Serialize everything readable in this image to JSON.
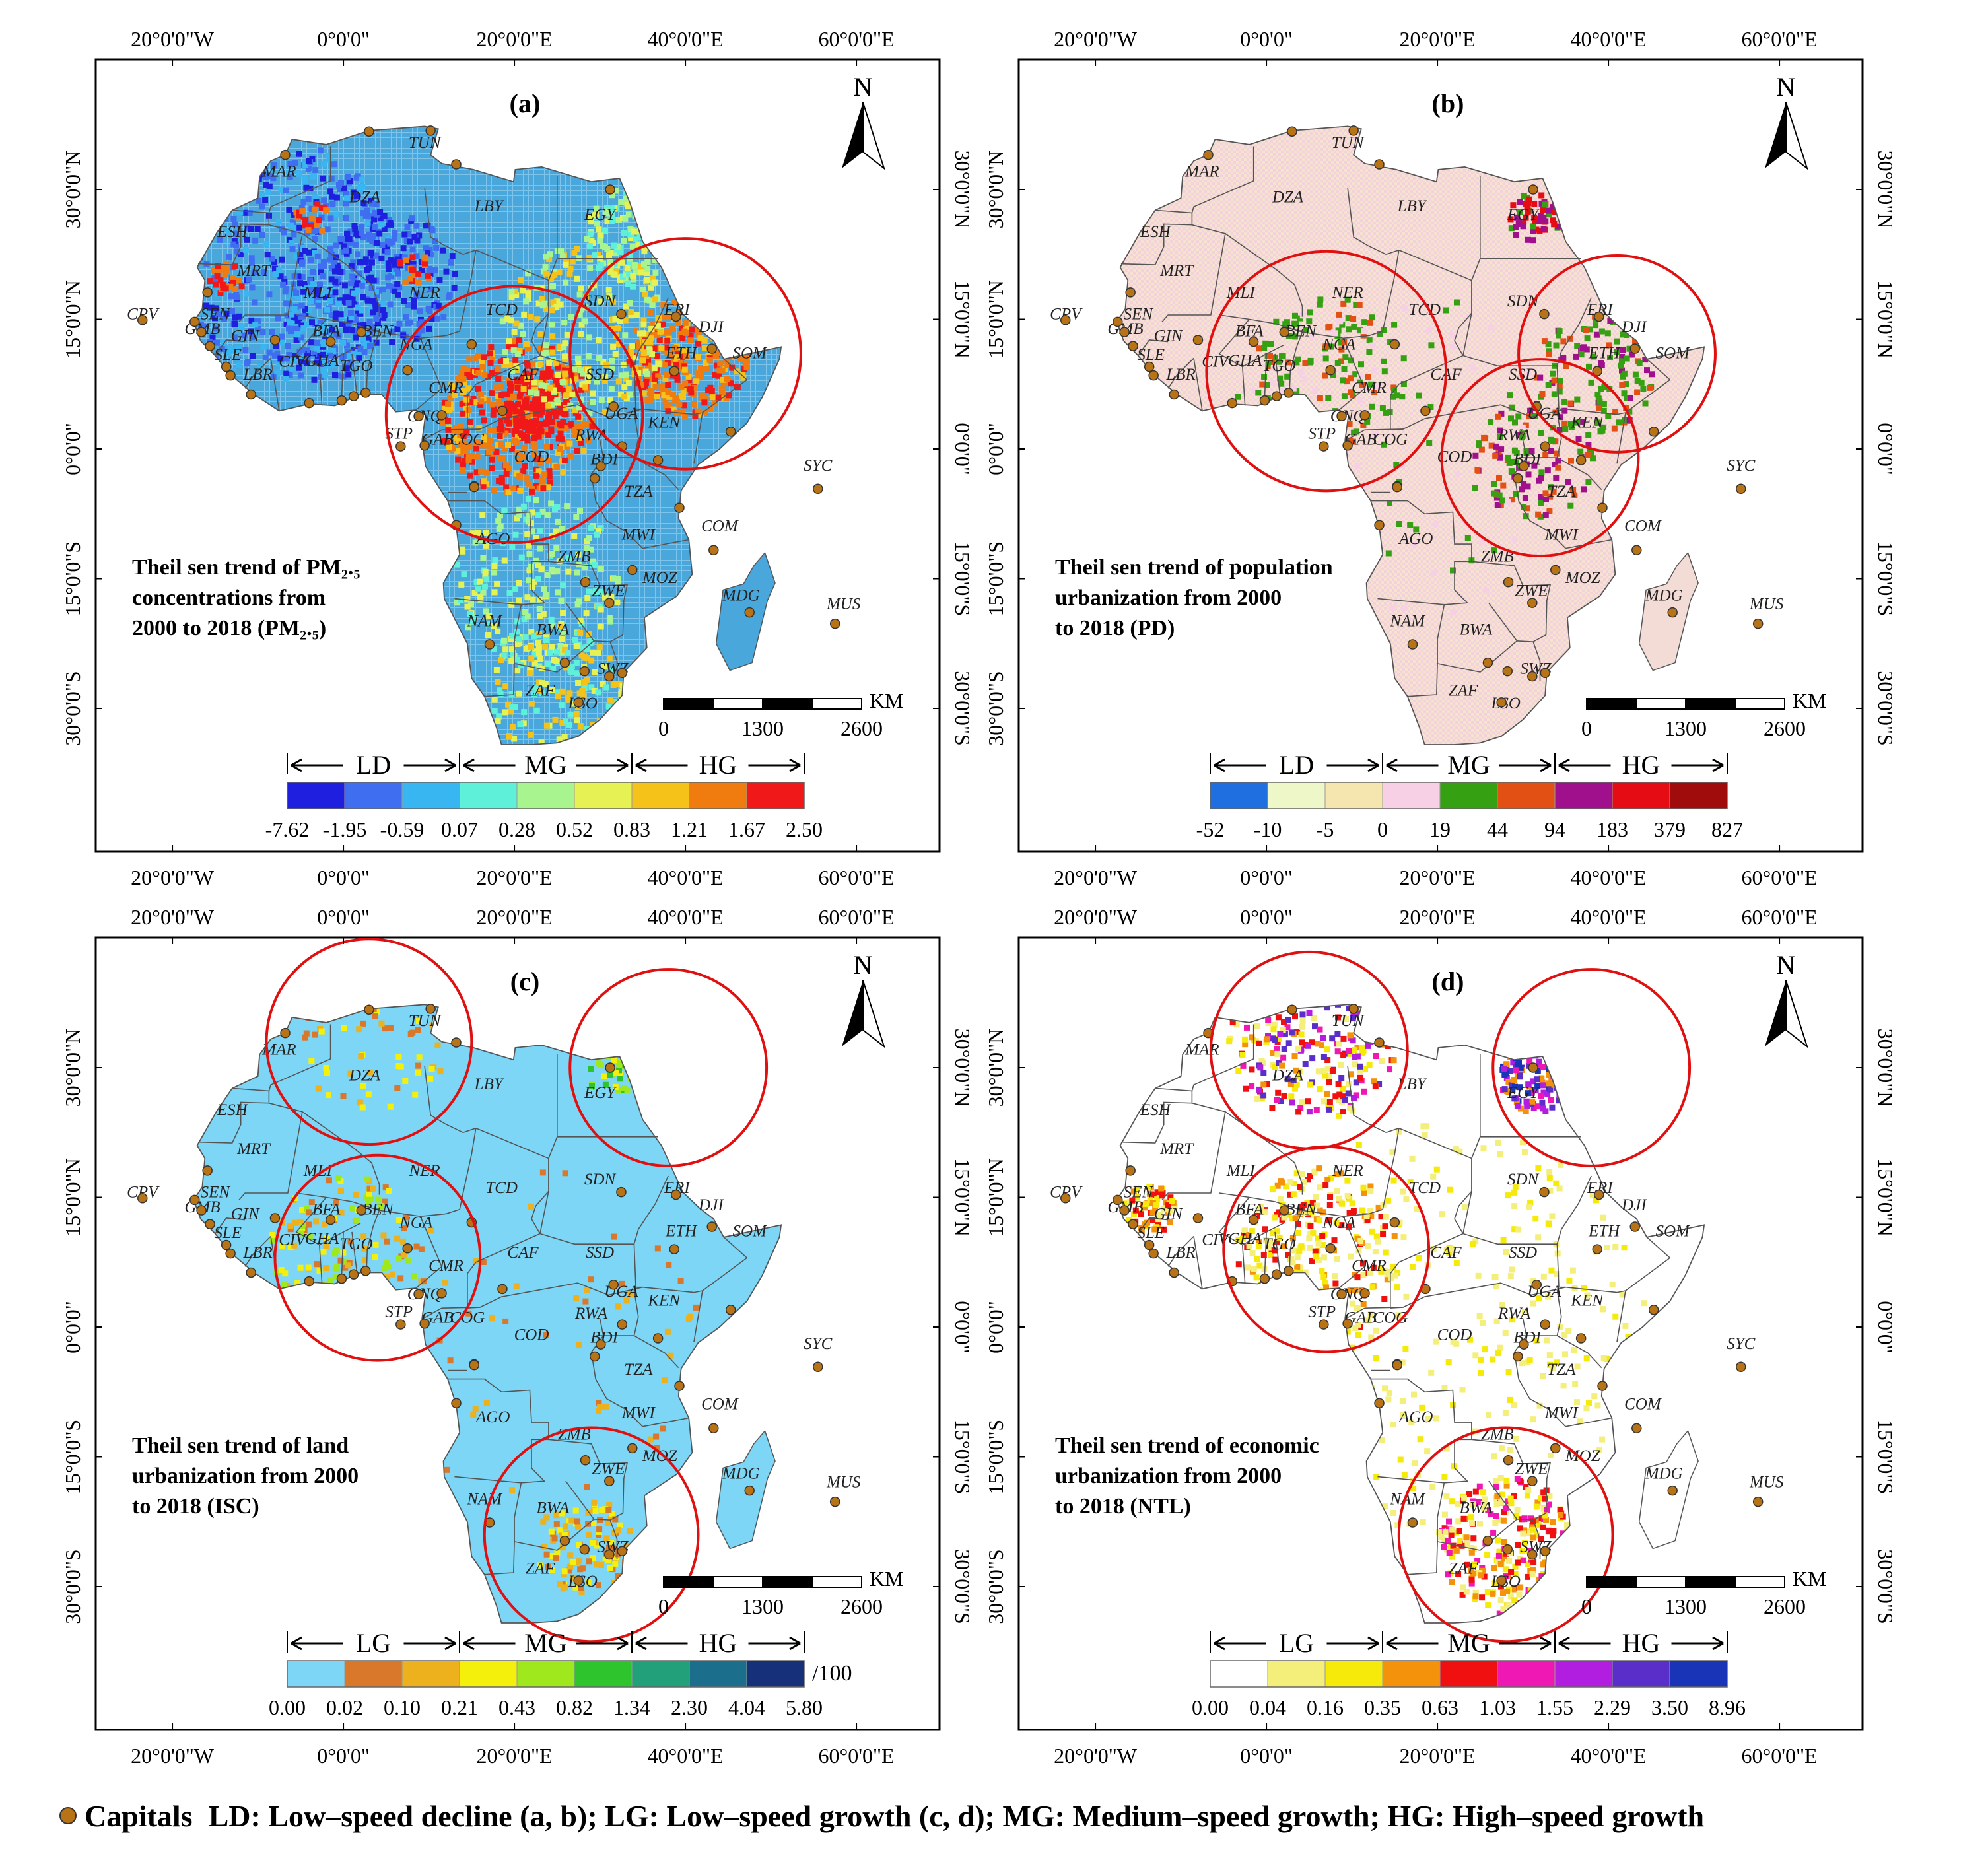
{
  "figure": {
    "colors": {
      "capital": "#b87316",
      "circle": "#e01010",
      "border": "#555555",
      "frame": "#000000"
    },
    "legend_footer": {
      "capitals": "Capitals",
      "definitions": "LD: Low–speed decline (a, b); LG: Low–speed growth (c, d); MG:  Medium–speed growth; HG: High–speed growth"
    },
    "panels": [
      {
        "id": "a",
        "label": "(a)",
        "title_lines": [
          "Theil sen trend of PM₂.₅",
          "concentrations from",
          "2000 to 2018 (PM₂.₅)"
        ],
        "top_lon_labels": [
          "20°0'0\"W",
          "0°0'0\"",
          "20°0'0\"E",
          "40°0'0\"E",
          "60°0'0\"E"
        ],
        "bottom_lon_labels": [
          "20°0'0\"W",
          "0°0'0\"",
          "20°0'0\"E",
          "40°0'0\"E",
          "60°0'0\"E"
        ],
        "left_lat_labels": [
          "30°0'0\"N",
          "15°0'0\"N",
          "0°0'0\"",
          "15°0'0\"S",
          "30°0'0\"S"
        ],
        "right_lat_labels": [
          "30°0'0\"N",
          "15°0'0\"N",
          "0°0'0\"",
          "15°0'0\"S",
          "30°0'0\"S"
        ],
        "north": "N",
        "scale": {
          "unit": "KM",
          "ticks": [
            "0",
            "1300",
            "2600"
          ]
        },
        "legend_groups": [
          "LD",
          "MG",
          "HG"
        ],
        "legend_colors": [
          "#1f1fe0",
          "#3f6ff0",
          "#37b6f2",
          "#5ef0d8",
          "#a8f590",
          "#e6f254",
          "#f5c21a",
          "#f07c10",
          "#f01818"
        ],
        "legend_ticks": [
          "-7.62",
          "-1.95",
          "-0.59",
          "0.07",
          "0.28",
          "0.52",
          "0.83",
          "1.21",
          "1.67",
          "2.50"
        ],
        "legend_unit": "",
        "land_color": "#4aa7dc"
      },
      {
        "id": "b",
        "label": "(b)",
        "title_lines": [
          "Theil sen trend of population",
          "urbanization from 2000",
          " to 2018 (PD)"
        ],
        "top_lon_labels": [
          "20°0'0\"W",
          "0°0'0\"",
          "20°0'0\"E",
          "40°0'0\"E",
          "60°0'0\"E"
        ],
        "bottom_lon_labels": [
          "20°0'0\"W",
          "0°0'0\"",
          "20°0'0\"E",
          "40°0'0\"E",
          "60°0'0\"E"
        ],
        "left_lat_labels": [
          "30°0'0\"N",
          "15°0'0\"N",
          "0°0'0\"",
          "15°0'0\"S",
          "30°0'0\"S"
        ],
        "right_lat_labels": [
          "30°0'0\"N",
          "15°0'0\"N",
          "0°0'0\"",
          "15°0'0\"S",
          "30°0'0\"S"
        ],
        "north": "N",
        "scale": {
          "unit": "KM",
          "ticks": [
            "0",
            "1300",
            "2600"
          ]
        },
        "legend_groups": [
          "LD",
          "MG",
          "HG"
        ],
        "legend_colors": [
          "#1f6fe0",
          "#eef7c8",
          "#f5e6b0",
          "#f7d0e6",
          "#35a012",
          "#e35014",
          "#a0108c",
          "#e60c14",
          "#a00c0c"
        ],
        "legend_ticks": [
          "-52",
          "-10",
          "-5",
          "0",
          "19",
          "44",
          "94",
          "183",
          "379",
          "827"
        ],
        "legend_unit": "",
        "land_color": "#f3dcd6"
      },
      {
        "id": "c",
        "label": "(c)",
        "title_lines": [
          "Theil sen trend of land",
          "urbanization from 2000",
          " to 2018 (ISC)"
        ],
        "top_lon_labels": [
          "20°0'0\"W",
          "0°0'0\"",
          "20°0'0\"E",
          "40°0'0\"E",
          "60°0'0\"E"
        ],
        "bottom_lon_labels": [
          "20°0'0\"W",
          "0°0'0\"",
          "20°0'0\"E",
          "40°0'0\"E",
          "60°0'0\"E"
        ],
        "left_lat_labels": [
          "30°0'0\"N",
          "15°0'0\"N",
          "0°0'0\"",
          "15°0'0\"S",
          "30°0'0\"S"
        ],
        "right_lat_labels": [
          "30°0'0\"N",
          "15°0'0\"N",
          "0°0'0\"",
          "15°0'0\"S",
          "30°0'0\"S"
        ],
        "north": "N",
        "scale": {
          "unit": "KM",
          "ticks": [
            "0",
            "1300",
            "2600"
          ]
        },
        "legend_groups": [
          "LG",
          "MG",
          "HG"
        ],
        "legend_colors": [
          "#7dd6f5",
          "#d9782a",
          "#ecb11c",
          "#f4f00c",
          "#9fe81e",
          "#2ec42e",
          "#22a07a",
          "#1b6f8c",
          "#17307a"
        ],
        "legend_ticks": [
          "0.00",
          "0.02",
          "0.10",
          "0.21",
          "0.43",
          "0.82",
          "1.34",
          "2.30",
          "4.04",
          "5.80"
        ],
        "legend_unit": "/100",
        "land_color": "#7dd6f5"
      },
      {
        "id": "d",
        "label": "(d)",
        "title_lines": [
          "Theil sen trend of economic",
          "urbanization from 2000",
          " to 2018 (NTL)"
        ],
        "top_lon_labels": [
          "20°0'0\"W",
          "0°0'0\"",
          "20°0'0\"E",
          "40°0'0\"E",
          "60°0'0\"E"
        ],
        "bottom_lon_labels": [
          "20°0'0\"W",
          "0°0'0\"",
          "20°0'0\"E",
          "40°0'0\"E",
          "60°0'0\"E"
        ],
        "left_lat_labels": [
          "30°0'0\"N",
          "15°0'0\"N",
          "0°0'0\"",
          "15°0'0\"S",
          "30°0'0\"S"
        ],
        "right_lat_labels": [
          "30°0'0\"N",
          "15°0'0\"N",
          "0°0'0\"",
          "15°0'0\"S",
          "30°0'0\"S"
        ],
        "north": "N",
        "scale": {
          "unit": "KM",
          "ticks": [
            "0",
            "1300",
            "2600"
          ]
        },
        "legend_groups": [
          "LG",
          "MG",
          "HG"
        ],
        "legend_colors": [
          "#ffffff",
          "#f4ee7a",
          "#f5ea0a",
          "#f5920c",
          "#f01010",
          "#ef18b4",
          "#b21ee0",
          "#5a2ec8",
          "#1a34b8"
        ],
        "legend_ticks": [
          "0.00",
          "0.04",
          "0.16",
          "0.35",
          "0.63",
          "1.03",
          "1.55",
          "2.29",
          "3.50",
          "8.96"
        ],
        "legend_unit": "",
        "land_color": "#ffffff"
      }
    ],
    "countries": [
      {
        "code": "MAR",
        "lon": -7.5,
        "lat": 31.5
      },
      {
        "code": "TUN",
        "lon": 9.5,
        "lat": 34.8
      },
      {
        "code": "DZA",
        "lon": 2.5,
        "lat": 28.5
      },
      {
        "code": "LBY",
        "lon": 17,
        "lat": 27.5
      },
      {
        "code": "EGY",
        "lon": 30,
        "lat": 26.5
      },
      {
        "code": "ESH",
        "lon": -13,
        "lat": 24.5
      },
      {
        "code": "MRT",
        "lon": -10.5,
        "lat": 20
      },
      {
        "code": "MLI",
        "lon": -3,
        "lat": 17.5
      },
      {
        "code": "NER",
        "lon": 9.5,
        "lat": 17.5
      },
      {
        "code": "TCD",
        "lon": 18.5,
        "lat": 15.5
      },
      {
        "code": "SDN",
        "lon": 30,
        "lat": 16.5
      },
      {
        "code": "ERI",
        "lon": 39,
        "lat": 15.5
      },
      {
        "code": "CPV",
        "lon": -23.5,
        "lat": 15
      },
      {
        "code": "SEN",
        "lon": -15,
        "lat": 15
      },
      {
        "code": "GMB",
        "lon": -16.5,
        "lat": 13.3
      },
      {
        "code": "GIN",
        "lon": -11.5,
        "lat": 12.5
      },
      {
        "code": "BFA",
        "lon": -2,
        "lat": 13
      },
      {
        "code": "BEN",
        "lon": 4,
        "lat": 13
      },
      {
        "code": "NGA",
        "lon": 8.5,
        "lat": 11.5
      },
      {
        "code": "DJI",
        "lon": 43,
        "lat": 13.5
      },
      {
        "code": "SOM",
        "lon": 47.5,
        "lat": 10.5
      },
      {
        "code": "ETH",
        "lon": 39.5,
        "lat": 10.5
      },
      {
        "code": "SLE",
        "lon": -13.5,
        "lat": 10.3
      },
      {
        "code": "CIV",
        "lon": -6,
        "lat": 9.5
      },
      {
        "code": "GHA",
        "lon": -2.5,
        "lat": 9.6
      },
      {
        "code": "TGO",
        "lon": 1.5,
        "lat": 9
      },
      {
        "code": "LBR",
        "lon": -10,
        "lat": 8
      },
      {
        "code": "CMR",
        "lon": 12,
        "lat": 6.5
      },
      {
        "code": "CAF",
        "lon": 21,
        "lat": 8
      },
      {
        "code": "SSD",
        "lon": 30,
        "lat": 8
      },
      {
        "code": "GNQ",
        "lon": 9.5,
        "lat": 3.2
      },
      {
        "code": "STP",
        "lon": 6.5,
        "lat": 1.2
      },
      {
        "code": "UGA",
        "lon": 32.5,
        "lat": 3.5
      },
      {
        "code": "KEN",
        "lon": 37.5,
        "lat": 2.5
      },
      {
        "code": "GAB",
        "lon": 11,
        "lat": 0.5
      },
      {
        "code": "COG",
        "lon": 14.5,
        "lat": 0.5
      },
      {
        "code": "RWA",
        "lon": 29,
        "lat": 1
      },
      {
        "code": "COD",
        "lon": 22,
        "lat": -1.5
      },
      {
        "code": "BDI",
        "lon": 30.5,
        "lat": -1.8
      },
      {
        "code": "SYC",
        "lon": 55.5,
        "lat": -2.5
      },
      {
        "code": "TZA",
        "lon": 34.5,
        "lat": -5.5
      },
      {
        "code": "COM",
        "lon": 44,
        "lat": -9.5
      },
      {
        "code": "AGO",
        "lon": 17.5,
        "lat": -11
      },
      {
        "code": "MWI",
        "lon": 34.5,
        "lat": -10.5
      },
      {
        "code": "ZMB",
        "lon": 27,
        "lat": -13
      },
      {
        "code": "MOZ",
        "lon": 37,
        "lat": -15.5
      },
      {
        "code": "ZWE",
        "lon": 31,
        "lat": -17
      },
      {
        "code": "MDG",
        "lon": 46.5,
        "lat": -17.5
      },
      {
        "code": "MUS",
        "lon": 58.5,
        "lat": -18.5
      },
      {
        "code": "NAM",
        "lon": 16.5,
        "lat": -20.5
      },
      {
        "code": "BWA",
        "lon": 24.5,
        "lat": -21.5
      },
      {
        "code": "SWZ",
        "lon": 31.5,
        "lat": -26
      },
      {
        "code": "ZAF",
        "lon": 23,
        "lat": -28.5
      },
      {
        "code": "LSO",
        "lon": 28,
        "lat": -30
      }
    ],
    "capitals": [
      [
        -6.8,
        34.0
      ],
      [
        10.2,
        36.8
      ],
      [
        3.0,
        36.7
      ],
      [
        13.2,
        32.9
      ],
      [
        31.2,
        30.0
      ],
      [
        -17.4,
        14.7
      ],
      [
        -15.9,
        18.1
      ],
      [
        -8.0,
        12.6
      ],
      [
        2.1,
        13.5
      ],
      [
        15.0,
        12.1
      ],
      [
        32.5,
        15.6
      ],
      [
        38.9,
        15.3
      ],
      [
        43.1,
        11.6
      ],
      [
        45.3,
        2.0
      ],
      [
        38.7,
        9.0
      ],
      [
        -16.6,
        13.5
      ],
      [
        -15.6,
        11.9
      ],
      [
        -13.7,
        9.5
      ],
      [
        -13.2,
        8.5
      ],
      [
        -10.8,
        6.3
      ],
      [
        -4.0,
        5.3
      ],
      [
        -0.2,
        5.6
      ],
      [
        1.2,
        6.1
      ],
      [
        2.6,
        6.5
      ],
      [
        7.5,
        9.1
      ],
      [
        -1.5,
        12.4
      ],
      [
        11.5,
        3.9
      ],
      [
        18.6,
        4.4
      ],
      [
        31.6,
        4.9
      ],
      [
        8.8,
        3.8
      ],
      [
        6.7,
        0.3
      ],
      [
        9.5,
        0.4
      ],
      [
        15.3,
        -4.3
      ],
      [
        15.3,
        -4.4
      ],
      [
        32.6,
        0.3
      ],
      [
        36.8,
        -1.3
      ],
      [
        30.1,
        -2.0
      ],
      [
        29.4,
        -3.4
      ],
      [
        39.3,
        -6.8
      ],
      [
        13.2,
        -8.8
      ],
      [
        33.8,
        -14.0
      ],
      [
        28.3,
        -15.4
      ],
      [
        31.1,
        -17.8
      ],
      [
        32.6,
        -25.9
      ],
      [
        47.5,
        -18.9
      ],
      [
        17.1,
        -22.6
      ],
      [
        25.9,
        -24.7
      ],
      [
        31.1,
        -26.3
      ],
      [
        28.2,
        -25.7
      ],
      [
        27.5,
        -29.3
      ],
      [
        55.5,
        -4.6
      ],
      [
        57.5,
        -20.2
      ],
      [
        43.3,
        -11.7
      ],
      [
        -23.5,
        14.9
      ]
    ],
    "circles": {
      "a": [
        [
          20,
          4,
          15
        ],
        [
          40,
          11,
          13.5
        ]
      ],
      "b": [
        [
          7,
          9,
          14
        ],
        [
          41,
          11,
          11.5
        ],
        [
          32,
          -1,
          11.5
        ]
      ],
      "c": [
        [
          3,
          33,
          12
        ],
        [
          38,
          30,
          11.5
        ],
        [
          4,
          8,
          12
        ],
        [
          29,
          -24,
          12.5
        ]
      ],
      "d": [
        [
          5,
          32,
          11.5
        ],
        [
          38,
          30,
          11.5
        ],
        [
          7,
          9,
          12
        ],
        [
          28,
          -24,
          12.5
        ]
      ]
    }
  }
}
